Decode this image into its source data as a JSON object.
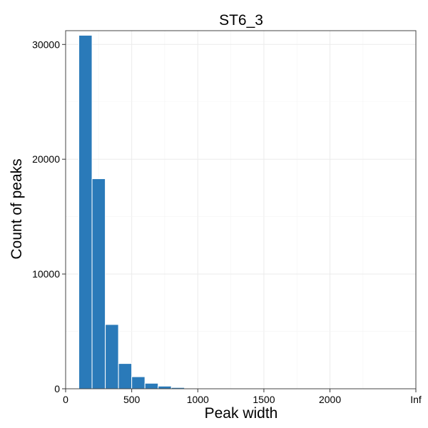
{
  "chart_data": {
    "type": "bar",
    "title": "ST6_3",
    "xlabel": "Peak width",
    "ylabel": "Count of peaks",
    "x_tick_labels": [
      "0",
      "500",
      "1000",
      "1500",
      "2000",
      "Inf"
    ],
    "x_tick_values": [
      0,
      500,
      1000,
      1500,
      2000,
      2650
    ],
    "y_tick_labels": [
      "0",
      "10000",
      "20000",
      "30000"
    ],
    "y_tick_values": [
      0,
      10000,
      20000,
      30000
    ],
    "xlim": [
      0,
      2650
    ],
    "ylim": [
      0,
      31200
    ],
    "grid": true,
    "bar_color": "#2a7ab9",
    "bins": [
      {
        "start": 100,
        "end": 200,
        "count": 30800
      },
      {
        "start": 200,
        "end": 300,
        "count": 18300
      },
      {
        "start": 300,
        "end": 400,
        "count": 5600
      },
      {
        "start": 400,
        "end": 500,
        "count": 2200
      },
      {
        "start": 500,
        "end": 600,
        "count": 1050
      },
      {
        "start": 600,
        "end": 700,
        "count": 480
      },
      {
        "start": 700,
        "end": 800,
        "count": 230
      },
      {
        "start": 800,
        "end": 900,
        "count": 110
      },
      {
        "start": 900,
        "end": 1000,
        "count": 55
      },
      {
        "start": 1000,
        "end": 1100,
        "count": 30
      },
      {
        "start": 1100,
        "end": 1200,
        "count": 18
      },
      {
        "start": 1200,
        "end": 1300,
        "count": 10
      },
      {
        "start": 1300,
        "end": 1400,
        "count": 6
      },
      {
        "start": 1400,
        "end": 1500,
        "count": 4
      }
    ]
  }
}
